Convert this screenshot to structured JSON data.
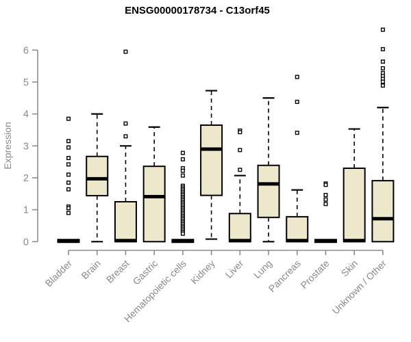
{
  "chart_data": {
    "type": "boxplot",
    "title": "ENSG00000178734 - C13orf45",
    "ylabel": "Expression",
    "xlabel": "",
    "ylim": [
      0,
      6
    ],
    "yticks": [
      0,
      1,
      2,
      3,
      4,
      5,
      6
    ],
    "grid": false,
    "legend": false,
    "categories": [
      "Bladder",
      "Brain",
      "Breast",
      "Gastric",
      "Hematopoietic cells",
      "Kidney",
      "Liver",
      "Lung",
      "Pancreas",
      "Prostate",
      "Skin",
      "Unknown / Other"
    ],
    "series": [
      {
        "label": "Bladder",
        "whislo": 0,
        "q1": 0,
        "med": 0,
        "q3": 0,
        "whishi": 0,
        "outliers": [
          3.85,
          3.15,
          2.95,
          2.62,
          2.42,
          2.1,
          1.85,
          1.64,
          1.1,
          1.05,
          0.9
        ]
      },
      {
        "label": "Brain",
        "whislo": 0,
        "q1": 1.44,
        "med": 1.97,
        "q3": 2.67,
        "whishi": 4.0,
        "outliers": []
      },
      {
        "label": "Breast",
        "whislo": 0,
        "q1": 0,
        "med": 0,
        "q3": 1.25,
        "whishi": 3.0,
        "outliers": [
          5.95,
          3.7,
          3.3
        ]
      },
      {
        "label": "Gastric",
        "whislo": 0,
        "q1": 0,
        "med": 1.41,
        "q3": 2.36,
        "whishi": 3.59,
        "outliers": []
      },
      {
        "label": "Hematopoietic cells",
        "whislo": 0,
        "q1": 0,
        "med": 0,
        "q3": 0,
        "whishi": 0,
        "outliers": [
          2.78,
          2.58,
          2.3,
          2.22,
          2.07,
          1.75,
          1.7,
          1.65,
          1.6,
          1.55,
          1.5,
          1.45,
          1.4,
          1.35,
          1.3,
          1.25,
          1.2,
          1.15,
          1.1,
          1.05,
          1.0,
          0.95,
          0.9,
          0.85,
          0.8,
          0.75,
          0.7,
          0.65,
          0.6,
          0.55,
          0.5,
          0.45,
          0.4,
          0.35,
          0.3,
          0.25
        ]
      },
      {
        "label": "Kidney",
        "whislo": 0.08,
        "q1": 1.45,
        "med": 2.9,
        "q3": 3.65,
        "whishi": 4.73,
        "outliers": []
      },
      {
        "label": "Liver",
        "whislo": 0,
        "q1": 0,
        "med": 0,
        "q3": 0.88,
        "whishi": 2.07,
        "outliers": [
          3.48,
          3.43,
          2.87,
          2.25
        ]
      },
      {
        "label": "Lung",
        "whislo": 0,
        "q1": 0.76,
        "med": 1.81,
        "q3": 2.39,
        "whishi": 4.5,
        "outliers": []
      },
      {
        "label": "Pancreas",
        "whislo": 0,
        "q1": 0,
        "med": 0,
        "q3": 0.78,
        "whishi": 1.62,
        "outliers": [
          5.16,
          4.38,
          3.41
        ]
      },
      {
        "label": "Prostate",
        "whislo": 0,
        "q1": 0,
        "med": 0,
        "q3": 0,
        "whishi": 0,
        "outliers": [
          1.82,
          1.78,
          1.46,
          1.32,
          1.18
        ]
      },
      {
        "label": "Skin",
        "whislo": 0,
        "q1": 0,
        "med": 0,
        "q3": 2.3,
        "whishi": 3.53,
        "outliers": []
      },
      {
        "label": "Unknown / Other",
        "whislo": 0,
        "q1": 0,
        "med": 0.72,
        "q3": 1.91,
        "whishi": 4.2,
        "outliers": [
          6.64,
          6.03,
          5.64,
          5.43,
          5.28,
          5.19,
          5.1,
          5.01,
          4.89
        ]
      }
    ],
    "colors": {
      "box_fill": "#EDE7CB",
      "box_border": "#000000",
      "median": "#000000",
      "whisker": "#000000",
      "outlier_stroke": "#000000",
      "outlier_fill": "#FFFFFF",
      "axis": "#8C8C8C",
      "tick_label": "#8A8A8A",
      "title": "#000000",
      "background": "#FFFFFF"
    }
  }
}
